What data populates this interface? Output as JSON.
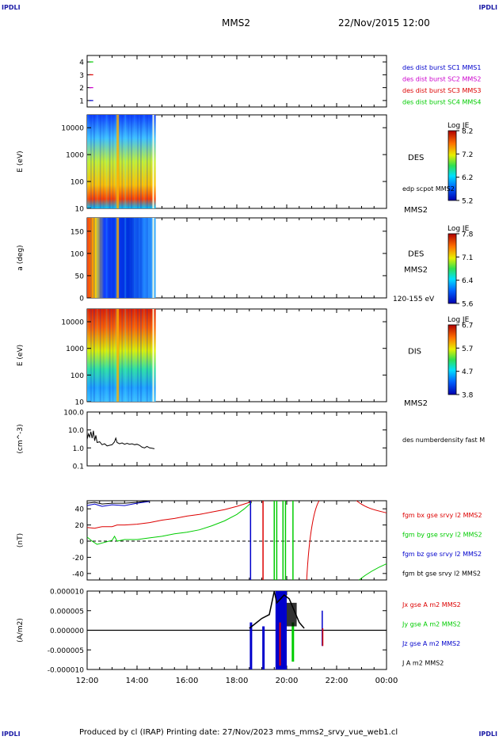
{
  "corners": {
    "top_left": "IPDLI",
    "top_right": "IPDLI",
    "bottom_left": "IPDLI",
    "bottom_right": "IPDLI"
  },
  "header": {
    "spacecraft": "MMS2",
    "datetime": "22/Nov/2015 12:00"
  },
  "footer": {
    "text": "Produced by cl (IRAP)   Printing date: 27/Nov/2023   mms_mms2_srvy_vue_web1.cl"
  },
  "colors": {
    "black": "#000000",
    "red": "#dd0000",
    "green": "#00cc00",
    "blue": "#0000cc",
    "magenta": "#cc00cc"
  },
  "time_axis": {
    "ticks": [
      "12:00",
      "14:00",
      "16:00",
      "18:00",
      "20:00",
      "22:00",
      "00:00"
    ]
  },
  "chart_data": [
    {
      "type": "scatter",
      "panel": "des-dist-burst-availability",
      "y_ticks": [
        "4",
        "3",
        "2",
        "1"
      ],
      "ylim": [
        0.5,
        4.5
      ],
      "legend": [
        "des dist burst SC1 MMS1",
        "des dist burst SC2 MMS2",
        "des dist burst SC3 MMS3",
        "des dist burst SC4 MMS4"
      ],
      "legend_colors": [
        "#0000cc",
        "#cc00cc",
        "#dd0000",
        "#00cc00"
      ],
      "series": [
        {
          "name": "des dist burst SC1 MMS1",
          "x": [
            12.15
          ],
          "y": [
            1
          ],
          "color": "#0000cc"
        },
        {
          "name": "des dist burst SC2 MMS2",
          "x": [
            12.15
          ],
          "y": [
            2
          ],
          "color": "#cc00cc"
        },
        {
          "name": "des dist burst SC3 MMS3",
          "x": [
            12.15
          ],
          "y": [
            3
          ],
          "color": "#dd0000"
        },
        {
          "name": "des dist burst SC4 MMS4",
          "x": [
            12.15
          ],
          "y": [
            4
          ],
          "color": "#00cc00"
        }
      ]
    },
    {
      "type": "heatmap",
      "panel": "des-energy-spectrogram",
      "ylabel": "E (eV)",
      "y_ticks": [
        "10000",
        "1000",
        "100",
        "10"
      ],
      "y_scale": "log",
      "ylim": [
        10,
        30000
      ],
      "xlim": [
        12.0,
        24.0
      ],
      "data_coverage_hours": [
        12.0,
        14.75
      ],
      "instrument": "DES",
      "overlay_label": "edp scpot MMS2",
      "sc_label": "MMS2",
      "colorbar": {
        "title": "Log JE",
        "ticks": [
          "8.2",
          "7.2",
          "6.2",
          "5.2"
        ],
        "range": [
          5.2,
          8.2
        ]
      }
    },
    {
      "type": "heatmap",
      "panel": "des-pitch-angle",
      "ylabel": "a (deg)",
      "y_ticks": [
        "150",
        "100",
        "50",
        "0"
      ],
      "ylim": [
        0,
        180
      ],
      "xlim": [
        12.0,
        24.0
      ],
      "data_coverage_hours": [
        12.0,
        14.75
      ],
      "instrument": "DES",
      "sc_label": "MMS2",
      "energy_range": "120-155 eV",
      "colorbar": {
        "title": "Log JE",
        "ticks": [
          "7.8",
          "7.1",
          "6.4",
          "5.6"
        ],
        "range": [
          5.6,
          7.8
        ]
      }
    },
    {
      "type": "heatmap",
      "panel": "dis-energy-spectrogram",
      "ylabel": "E (eV)",
      "y_ticks": [
        "10000",
        "1000",
        "100",
        "10"
      ],
      "y_scale": "log",
      "ylim": [
        10,
        30000
      ],
      "xlim": [
        12.0,
        24.0
      ],
      "data_coverage_hours": [
        12.0,
        14.75
      ],
      "instrument": "DIS",
      "sc_label": "MMS2",
      "colorbar": {
        "title": "Log JE",
        "ticks": [
          "6.7",
          "5.7",
          "4.7",
          "3.8"
        ],
        "range": [
          3.8,
          6.7
        ]
      }
    },
    {
      "type": "line",
      "panel": "des-number-density",
      "ylabel": "(cm^-3)",
      "y_ticks": [
        "100.0",
        "10.0",
        "1.0",
        "0.1"
      ],
      "y_scale": "log",
      "ylim": [
        0.1,
        100
      ],
      "legend": [
        "des numberdensity fast M"
      ],
      "series": [
        {
          "name": "des numberdensity fast M",
          "color": "#000000",
          "x": [
            12.0,
            12.05,
            12.1,
            12.15,
            12.2,
            12.25,
            12.3,
            12.35,
            12.4,
            12.5,
            12.6,
            12.7,
            12.8,
            12.9,
            13.0,
            13.1,
            13.15,
            13.2,
            13.3,
            13.4,
            13.5,
            13.6,
            13.7,
            13.8,
            13.9,
            14.0,
            14.1,
            14.2,
            14.3,
            14.4,
            14.5,
            14.6,
            14.7
          ],
          "y": [
            3.0,
            6.0,
            4.0,
            8.0,
            3.5,
            9.0,
            2.5,
            5.0,
            2.0,
            2.2,
            1.5,
            1.7,
            1.3,
            1.4,
            1.5,
            2.2,
            3.5,
            2.0,
            1.7,
            1.9,
            1.6,
            1.8,
            1.6,
            1.7,
            1.5,
            1.6,
            1.4,
            1.1,
            1.0,
            1.2,
            1.0,
            0.95,
            0.9
          ]
        }
      ]
    },
    {
      "type": "line",
      "panel": "fgm-magnetic-field",
      "ylabel": "(nT)",
      "y_ticks": [
        "40",
        "20",
        "0",
        "-20",
        "-40"
      ],
      "ylim": [
        -48,
        50
      ],
      "legend": [
        "fgm bx gse srvy l2 MMS2",
        "fgm by gse srvy l2 MMS2",
        "fgm bz gse srvy l2 MMS2",
        "fgm bt gse srvy l2 MMS2"
      ],
      "legend_colors": [
        "#dd0000",
        "#00cc00",
        "#0000cc",
        "#000000"
      ],
      "series": [
        {
          "name": "fgm bx gse srvy l2 MMS2",
          "color": "#dd0000",
          "x": [
            12.0,
            12.3,
            12.6,
            13.0,
            13.2,
            13.5,
            14.0,
            14.5,
            15.0,
            15.5,
            16.0,
            16.5,
            17.0,
            17.5,
            18.0,
            18.3,
            18.6
          ],
          "y": [
            17,
            16,
            18,
            18,
            20,
            20,
            21,
            23,
            26,
            28,
            31,
            33,
            36,
            39,
            43,
            46,
            49
          ]
        },
        {
          "name": "fgm by gse srvy l2 MMS2",
          "color": "#00cc00",
          "x": [
            12.0,
            12.2,
            12.4,
            13.0,
            13.1,
            13.2,
            13.5,
            14.0,
            14.5,
            15.0,
            15.5,
            16.0,
            16.5,
            17.0,
            17.5,
            18.0,
            18.3,
            18.6
          ],
          "y": [
            5,
            0,
            -4,
            1,
            6,
            0,
            2,
            2,
            4,
            6,
            9,
            11,
            14,
            19,
            25,
            33,
            40,
            48
          ]
        },
        {
          "name": "fgm bz gse srvy l2 MMS2",
          "color": "#0000cc",
          "x": [
            12.0,
            12.3,
            12.6,
            13.0,
            13.5,
            14.0,
            14.5
          ],
          "y": [
            44,
            46,
            43,
            45,
            44,
            47,
            49
          ]
        },
        {
          "name": "fgm bt gse srvy l2 MMS2",
          "color": "#000000",
          "x": [
            12.0,
            12.3,
            12.6,
            13.0,
            13.5,
            14.0,
            14.5
          ],
          "y": [
            47,
            48,
            46,
            47,
            47,
            48,
            50
          ]
        }
      ],
      "vertical_spikes": [
        {
          "x": 18.55,
          "color": "#0000cc"
        },
        {
          "x": 19.05,
          "color": "#dd0000"
        },
        {
          "x": 19.5,
          "color": "#00cc00"
        },
        {
          "x": 19.6,
          "color": "#00cc00"
        },
        {
          "x": 19.85,
          "color": "#00cc00"
        },
        {
          "x": 19.95,
          "color": "#00cc00"
        },
        {
          "x": 20.25,
          "color": "#00cc00"
        }
      ],
      "zero_line": true
    },
    {
      "type": "line",
      "panel": "current-density",
      "ylabel": "(A/m2)",
      "y_ticks": [
        "0.000010",
        "0.000005",
        "0.000000",
        "-0.000005",
        "-0.000010"
      ],
      "ylim": [
        -1e-05,
        1e-05
      ],
      "legend": [
        "Jx gse A m2 MMS2",
        "Jy gse A m2 MMS2",
        "Jz gse A m2 MMS2",
        "J A m2 MMS2"
      ],
      "legend_colors": [
        "#dd0000",
        "#00cc00",
        "#0000cc",
        "#000000"
      ],
      "series": [
        {
          "name": "J A m2 MMS2",
          "color": "#000000",
          "x": [
            12.0,
            18.5,
            19.0,
            19.5,
            20.0,
            20.5,
            24.0
          ],
          "y": [
            0,
            5e-07,
            3e-06,
            8e-06,
            6e-06,
            2e-06,
            0
          ]
        },
        {
          "name": "Jz gse A m2 MMS2",
          "color": "#0000cc",
          "x": [
            12.0,
            18.55,
            19.6,
            19.95,
            24.0
          ],
          "y": [
            0,
            -1e-05,
            -1e-05,
            1e-05,
            0
          ]
        },
        {
          "name": "Jx gse A m2 MMS2",
          "color": "#dd0000",
          "x": [
            12.0,
            21.4,
            24.0
          ],
          "y": [
            0,
            -4e-06,
            0
          ]
        },
        {
          "name": "Jy gse A m2 MMS2",
          "color": "#00cc00",
          "x": [
            12.0,
            19.8,
            24.0
          ],
          "y": [
            0,
            -8e-06,
            0
          ]
        }
      ]
    }
  ]
}
